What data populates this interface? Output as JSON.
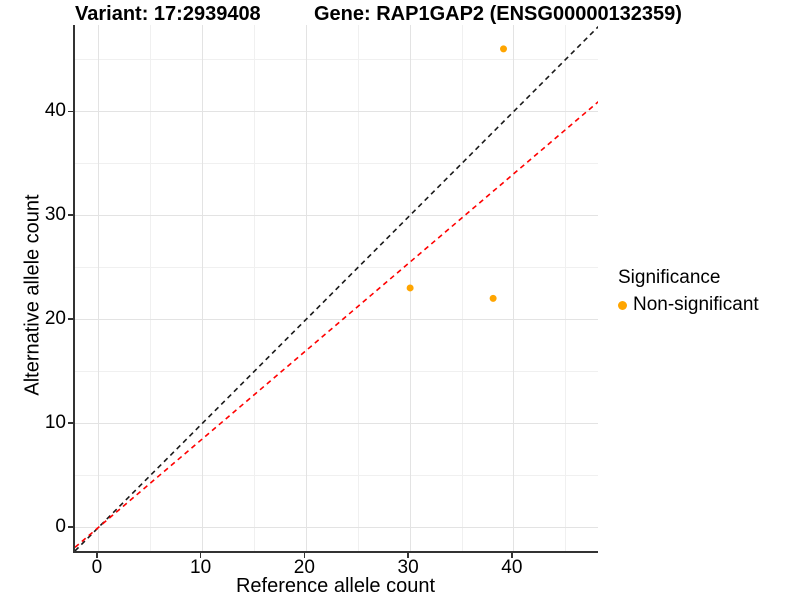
{
  "titles": {
    "variant": "Variant: 17:2939408",
    "gene": "Gene: RAP1GAP2 (ENSG00000132359)"
  },
  "chart_data": {
    "type": "scatter",
    "xlabel": "Reference allele count",
    "ylabel": "Alternative allele count",
    "xlim": [
      -2.3,
      48.3
    ],
    "ylim": [
      -2.5,
      48.3
    ],
    "x_ticks": [
      0,
      10,
      20,
      30,
      40
    ],
    "y_ticks": [
      0,
      10,
      20,
      30,
      40
    ],
    "x_minor": [
      5,
      15,
      25,
      35,
      45
    ],
    "y_minor": [
      5,
      15,
      25,
      35,
      45
    ],
    "grid": true,
    "series": [
      {
        "name": "Non-significant",
        "color": "#FFA500",
        "marker": "circle",
        "points": [
          {
            "x": 30,
            "y": 23
          },
          {
            "x": 38,
            "y": 22
          },
          {
            "x": 39,
            "y": 46
          }
        ]
      }
    ],
    "lines": [
      {
        "name": "identity",
        "slope": 1,
        "intercept": 0,
        "color": "#1a1a1a",
        "style": "dashed"
      },
      {
        "name": "allelic-ratio",
        "slope": 0.85,
        "intercept": 0,
        "color": "#ff0000",
        "style": "dashed"
      }
    ],
    "legend": {
      "title": "Significance",
      "position": "right",
      "entries": [
        {
          "label": "Non-significant",
          "color": "#FFA500"
        }
      ]
    }
  },
  "colors": {
    "axis_line": "#333333",
    "grid_major": "#e3e3e3",
    "grid_minor": "#f0f0f0",
    "text": "#000000",
    "background": "#ffffff"
  }
}
